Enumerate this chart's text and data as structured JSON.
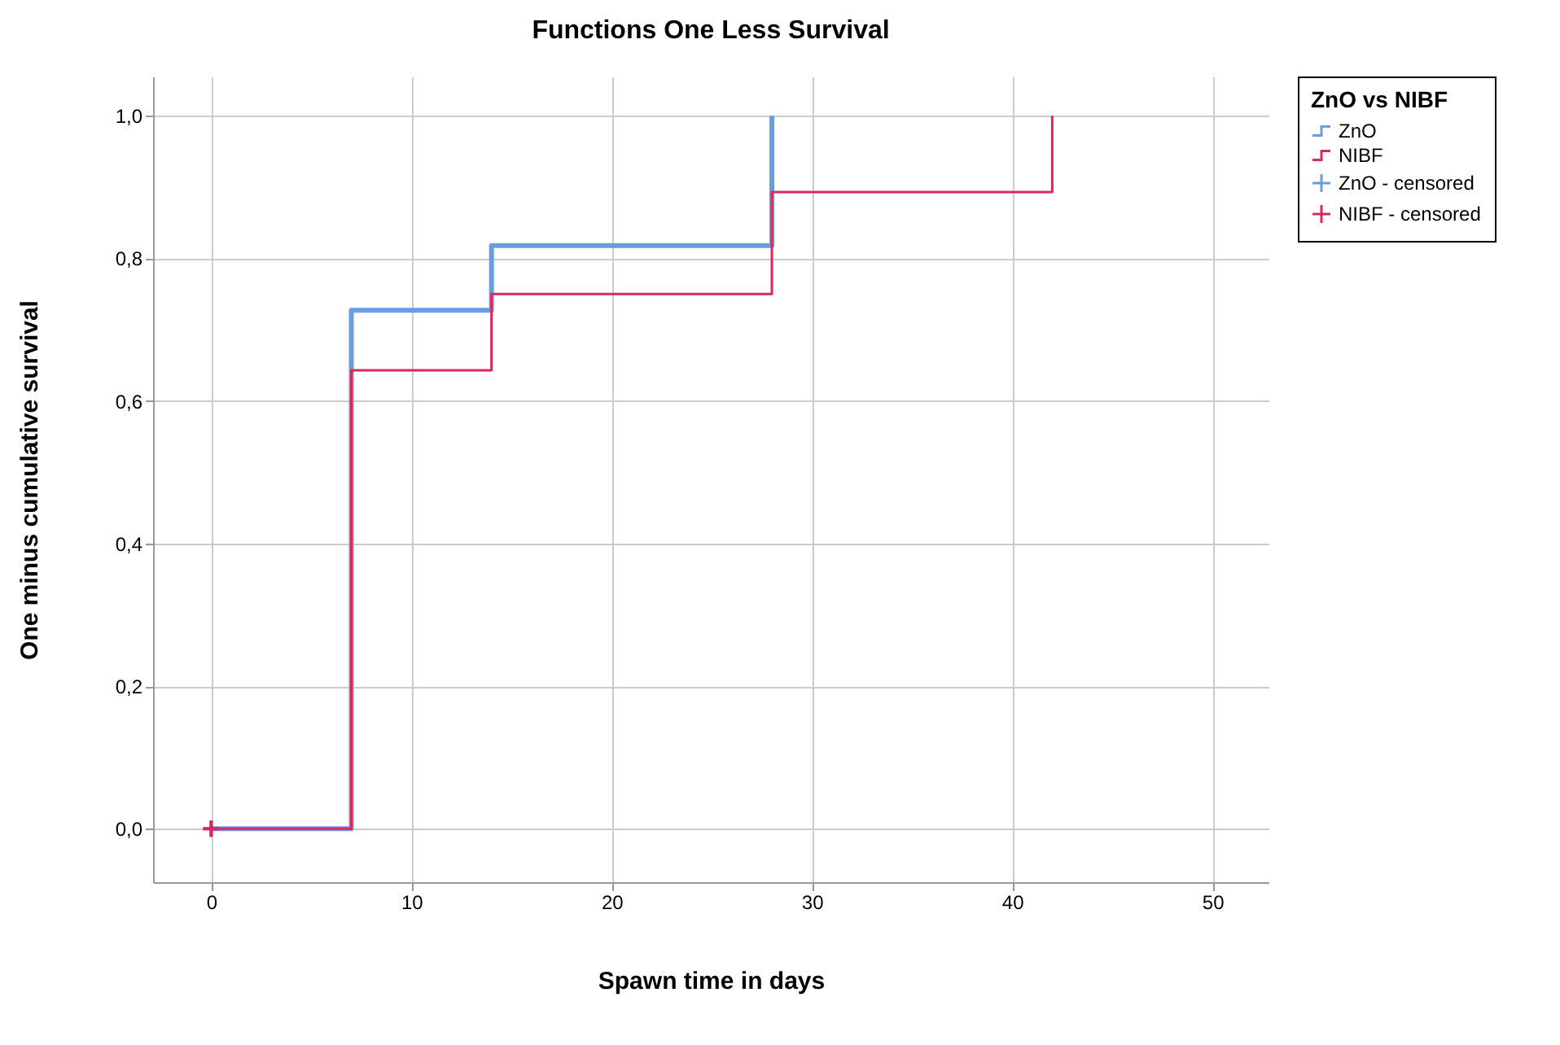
{
  "chart_data": {
    "type": "step",
    "title": "Functions One Less Survival",
    "xlabel": "Spawn time in days",
    "ylabel": "One minus cumulative survival",
    "legend_title": "ZnO vs NIBF",
    "series": [
      {
        "name": "ZnO",
        "color": "#6b9be0",
        "x": [
          0,
          7,
          14,
          28
        ],
        "values": [
          0,
          0.727,
          0.818,
          1.0
        ]
      },
      {
        "name": "NIBF",
        "color": "#d9285c",
        "x": [
          0,
          7,
          14,
          28,
          42
        ],
        "values": [
          0,
          0.643,
          0.75,
          0.893,
          1.0
        ]
      },
      {
        "name": "ZnO - censored",
        "type": "scatter",
        "marker": "cross",
        "color": "#6b9be0",
        "x": [
          0
        ],
        "values": [
          0
        ]
      },
      {
        "name": "NIBF - censored",
        "type": "scatter",
        "marker": "cross",
        "color": "#d9285c",
        "x": [
          0
        ],
        "values": [
          0
        ]
      }
    ],
    "xlim": [
      -2.9,
      52.8
    ],
    "xticks": [
      0,
      10,
      20,
      30,
      40,
      50
    ],
    "ylim": [
      -0.075,
      1.055
    ],
    "yticks": [
      {
        "value": 0,
        "label": "0,0"
      },
      {
        "value": 0.2,
        "label": "0,2"
      },
      {
        "value": 0.4,
        "label": "0,4"
      },
      {
        "value": 0.6,
        "label": "0,6"
      },
      {
        "value": 0.8,
        "label": "0,8"
      },
      {
        "value": 1.0,
        "label": "1,0"
      }
    ],
    "grid": true,
    "legend": "top right"
  }
}
